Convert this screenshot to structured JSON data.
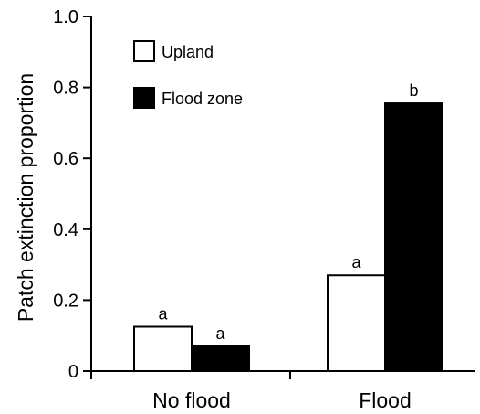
{
  "chart_data": {
    "type": "bar",
    "title": "",
    "xlabel": "",
    "ylabel": "Patch extinction proportion",
    "ylim": [
      0,
      1.0
    ],
    "yticks": [
      "0",
      "0.2",
      "0.4",
      "0.6",
      "0.8",
      "1.0"
    ],
    "categories": [
      "No flood",
      "Flood"
    ],
    "series": [
      {
        "name": "Upland",
        "fill": "#ffffff",
        "values": [
          0.125,
          0.27
        ],
        "labels": [
          "a",
          "a"
        ]
      },
      {
        "name": "Flood zone",
        "fill": "#000000",
        "values": [
          0.07,
          0.755
        ],
        "labels": [
          "a",
          "b"
        ]
      }
    ],
    "legend_position": "top-left",
    "grid": false
  }
}
